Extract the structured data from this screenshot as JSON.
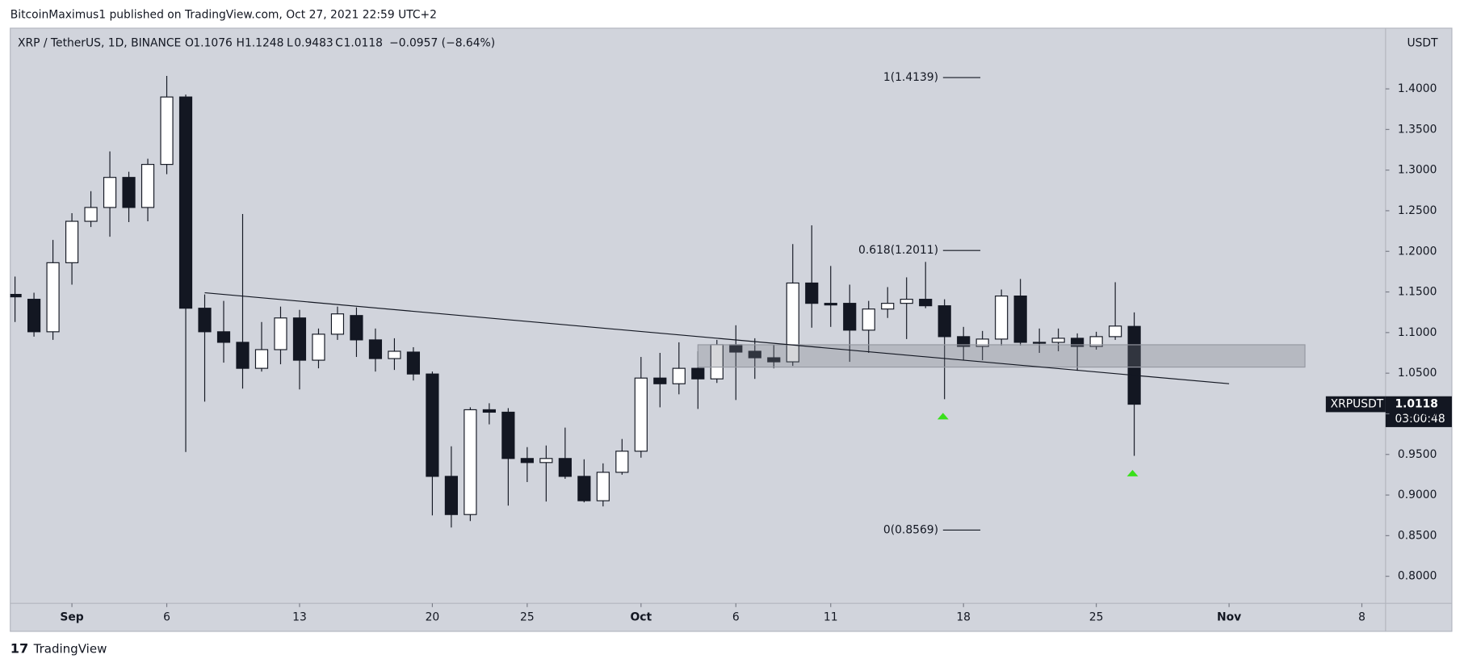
{
  "header": {
    "byline": "BitcoinMaximus1 published on TradingView.com, Oct 27, 2021 22:59 UTC+2",
    "brand": "TradingView"
  },
  "chart_data": {
    "type": "candlestick",
    "symbol": "XRP / TetherUS, 1D, BINANCE",
    "ohlc_letters": [
      "O",
      "H",
      "L",
      "C"
    ],
    "change": "−0.0957 (−8.64%)",
    "ticker": "XRPUSDT",
    "countdown": "03:00:48",
    "currency": "USDT",
    "candles": {
      "x": [
        "2021-08-29",
        "2021-08-30",
        "2021-08-31",
        "2021-09-01",
        "2021-09-02",
        "2021-09-03",
        "2021-09-04",
        "2021-09-05",
        "2021-09-06",
        "2021-09-07",
        "2021-09-08",
        "2021-09-09",
        "2021-09-10",
        "2021-09-11",
        "2021-09-12",
        "2021-09-13",
        "2021-09-14",
        "2021-09-15",
        "2021-09-16",
        "2021-09-17",
        "2021-09-18",
        "2021-09-19",
        "2021-09-20",
        "2021-09-21",
        "2021-09-22",
        "2021-09-23",
        "2021-09-24",
        "2021-09-25",
        "2021-09-26",
        "2021-09-27",
        "2021-09-28",
        "2021-09-29",
        "2021-09-30",
        "2021-10-01",
        "2021-10-02",
        "2021-10-03",
        "2021-10-04",
        "2021-10-05",
        "2021-10-06",
        "2021-10-07",
        "2021-10-08",
        "2021-10-09",
        "2021-10-10",
        "2021-10-11",
        "2021-10-12",
        "2021-10-13",
        "2021-10-14",
        "2021-10-15",
        "2021-10-16",
        "2021-10-17",
        "2021-10-18",
        "2021-10-19",
        "2021-10-20",
        "2021-10-21",
        "2021-10-22",
        "2021-10-23",
        "2021-10-24",
        "2021-10-25",
        "2021-10-26",
        "2021-10-27"
      ],
      "open": [
        1.147,
        1.141,
        1.101,
        1.186,
        1.237,
        1.254,
        1.291,
        1.254,
        1.307,
        1.39,
        1.13,
        1.101,
        1.088,
        1.056,
        1.079,
        1.118,
        1.066,
        1.098,
        1.121,
        1.091,
        1.068,
        1.076,
        1.049,
        0.923,
        0.876,
        1.005,
        1.002,
        0.945,
        0.94,
        0.945,
        0.923,
        0.893,
        0.928,
        0.954,
        1.044,
        1.037,
        1.056,
        1.043,
        1.085,
        1.077,
        1.069,
        1.064,
        1.161,
        1.136,
        1.136,
        1.103,
        1.129,
        1.136,
        1.141,
        1.133,
        1.095,
        1.083,
        1.092,
        1.145,
        1.088,
        1.088,
        1.093,
        1.083,
        1.095,
        1.1076
      ],
      "high": [
        1.169,
        1.149,
        1.214,
        1.247,
        1.274,
        1.323,
        1.298,
        1.314,
        1.416,
        1.393,
        1.147,
        1.139,
        1.246,
        1.113,
        1.132,
        1.128,
        1.105,
        1.132,
        1.131,
        1.105,
        1.093,
        1.082,
        1.052,
        0.96,
        1.008,
        1.013,
        1.007,
        0.959,
        0.961,
        0.983,
        0.944,
        0.939,
        0.969,
        1.07,
        1.075,
        1.088,
        1.077,
        1.091,
        1.109,
        1.093,
        1.085,
        1.209,
        1.232,
        1.182,
        1.159,
        1.139,
        1.156,
        1.168,
        1.187,
        1.141,
        1.107,
        1.102,
        1.153,
        1.166,
        1.105,
        1.105,
        1.099,
        1.101,
        1.162,
        1.1248
      ],
      "low": [
        1.113,
        1.095,
        1.091,
        1.159,
        1.23,
        1.218,
        1.236,
        1.237,
        1.295,
        0.953,
        1.015,
        1.063,
        1.031,
        1.052,
        1.061,
        1.03,
        1.056,
        1.091,
        1.07,
        1.052,
        1.054,
        1.041,
        0.875,
        0.86,
        0.868,
        0.987,
        0.887,
        0.916,
        0.892,
        0.92,
        0.891,
        0.886,
        0.925,
        0.946,
        1.008,
        1.024,
        1.006,
        1.038,
        1.017,
        1.043,
        1.056,
        1.059,
        1.106,
        1.107,
        1.064,
        1.075,
        1.118,
        1.092,
        1.13,
        1.018,
        1.066,
        1.066,
        1.084,
        1.084,
        1.075,
        1.077,
        1.053,
        1.079,
        1.091,
        0.9483
      ],
      "close": [
        1.144,
        1.101,
        1.186,
        1.237,
        1.254,
        1.291,
        1.254,
        1.307,
        1.39,
        1.13,
        1.101,
        1.088,
        1.056,
        1.079,
        1.118,
        1.066,
        1.098,
        1.123,
        1.091,
        1.068,
        1.077,
        1.049,
        0.923,
        0.876,
        1.005,
        1.002,
        0.945,
        0.94,
        0.945,
        0.923,
        0.893,
        0.928,
        0.954,
        1.044,
        1.037,
        1.056,
        1.043,
        1.085,
        1.076,
        1.069,
        1.064,
        1.161,
        1.136,
        1.134,
        1.103,
        1.129,
        1.136,
        1.141,
        1.133,
        1.095,
        1.083,
        1.092,
        1.145,
        1.088,
        1.087,
        1.093,
        1.083,
        1.095,
        1.108,
        1.0118
      ]
    },
    "up_color": "#ffffff",
    "down_color": "#131722",
    "xlim": [
      "2021-08-28T18:00",
      "2021-11-09T06:00"
    ],
    "ylim": [
      0.7667,
      1.4747
    ],
    "xticks": [
      {
        "value": "2021-09-01",
        "label": "Sep"
      },
      {
        "value": "2021-09-06",
        "label": "6"
      },
      {
        "value": "2021-09-13",
        "label": "13"
      },
      {
        "value": "2021-09-20",
        "label": "20"
      },
      {
        "value": "2021-09-25",
        "label": "25"
      },
      {
        "value": "2021-10-01",
        "label": "Oct"
      },
      {
        "value": "2021-10-06",
        "label": "6"
      },
      {
        "value": "2021-10-11",
        "label": "11"
      },
      {
        "value": "2021-10-18",
        "label": "18"
      },
      {
        "value": "2021-10-25",
        "label": "25"
      },
      {
        "value": "2021-11-01",
        "label": "Nov"
      },
      {
        "value": "2021-11-08",
        "label": "8"
      }
    ],
    "yticks": [
      {
        "value": 0.8,
        "label": "0.8000"
      },
      {
        "value": 0.85,
        "label": "0.8500"
      },
      {
        "value": 0.9,
        "label": "0.9000"
      },
      {
        "value": 0.95,
        "label": "0.9500"
      },
      {
        "value": 1.0,
        "label": "1.0000"
      },
      {
        "value": 1.05,
        "label": "1.0500"
      },
      {
        "value": 1.1,
        "label": "1.1000"
      },
      {
        "value": 1.15,
        "label": "1.1500"
      },
      {
        "value": 1.2,
        "label": "1.2000"
      },
      {
        "value": 1.25,
        "label": "1.2500"
      },
      {
        "value": 1.3,
        "label": "1.3000"
      },
      {
        "value": 1.35,
        "label": "1.3500"
      },
      {
        "value": 1.4,
        "label": "1.4000"
      }
    ],
    "fib_levels": [
      {
        "value": 1.4139,
        "label": "1(1.4139)"
      },
      {
        "value": 1.2011,
        "label": "0.618(1.2011)"
      },
      {
        "value": 0.8569,
        "label": "0(0.8569)"
      }
    ],
    "trendline": {
      "x": [
        "2021-09-08",
        "2021-11-01"
      ],
      "y": [
        1.149,
        1.037
      ]
    },
    "zone": {
      "x": [
        "2021-10-04",
        "2021-11-05"
      ],
      "y": [
        1.0575,
        1.085
      ]
    }
  }
}
